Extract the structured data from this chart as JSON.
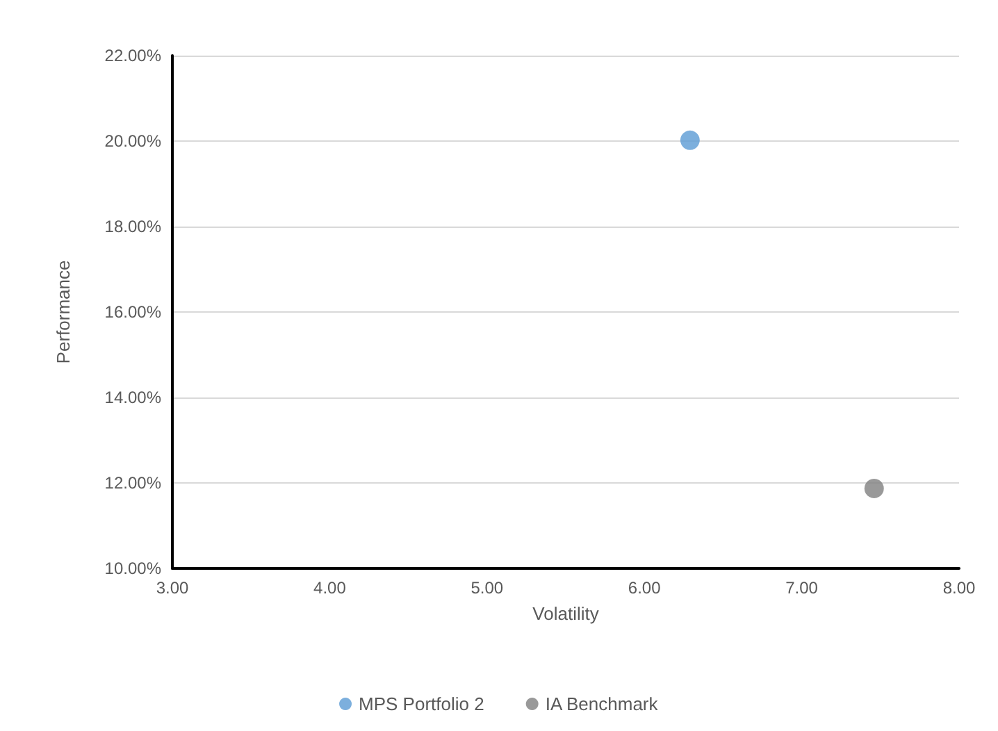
{
  "chart_data": {
    "type": "scatter",
    "xlabel": "Volatility",
    "ylabel": "Performance",
    "series": [
      {
        "name": "MPS Portfolio 2",
        "color": "#5b9bd5",
        "x": [
          6.29
        ],
        "values": [
          20.02
        ]
      },
      {
        "name": "IA Benchmark",
        "color": "#7f7f7f",
        "x": [
          7.46
        ],
        "values": [
          11.87
        ]
      }
    ],
    "xlim": [
      3,
      8
    ],
    "xticks": [
      {
        "value": 3,
        "label": "3.00"
      },
      {
        "value": 4,
        "label": "4.00"
      },
      {
        "value": 5,
        "label": "5.00"
      },
      {
        "value": 6,
        "label": "6.00"
      },
      {
        "value": 7,
        "label": "7.00"
      },
      {
        "value": 8,
        "label": "8.00"
      }
    ],
    "ylim": [
      10,
      22
    ],
    "yticks": [
      {
        "value": 10,
        "label": "10.00%"
      },
      {
        "value": 12,
        "label": "12.00%"
      },
      {
        "value": 14,
        "label": "14.00%"
      },
      {
        "value": 16,
        "label": "16.00%"
      },
      {
        "value": 18,
        "label": "18.00%"
      },
      {
        "value": 20,
        "label": "20.00%"
      },
      {
        "value": 22,
        "label": "22.00%"
      }
    ],
    "grid": "y",
    "legend": "bottom",
    "marker": "circle"
  }
}
